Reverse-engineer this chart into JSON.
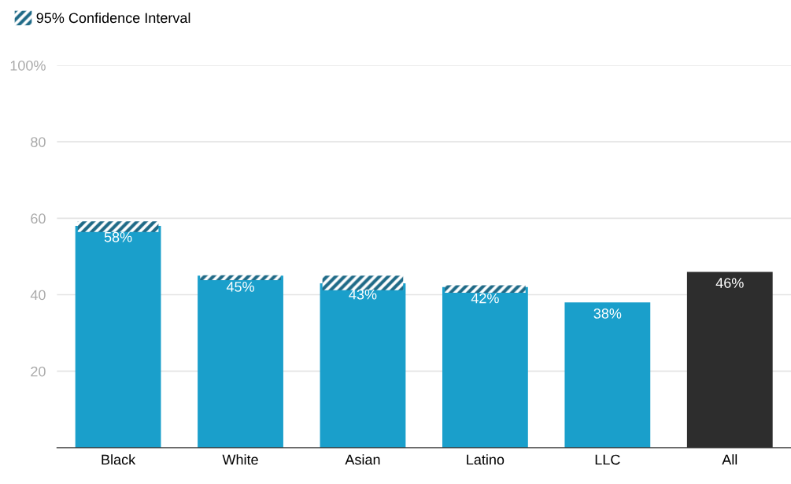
{
  "chart_data": {
    "type": "bar",
    "categories": [
      "Black",
      "White",
      "Asian",
      "Latino",
      "LLC",
      "All"
    ],
    "series": [
      {
        "values": [
          58,
          45,
          43,
          42,
          38,
          46
        ],
        "value_labels": [
          "58%",
          "45%",
          "43%",
          "42%",
          "38%",
          "46%"
        ],
        "colors": [
          "#1a9fcb",
          "#1a9fcb",
          "#1a9fcb",
          "#1a9fcb",
          "#1a9fcb",
          "#2d2d2d"
        ]
      },
      {
        "name": "95% Confidence Interval",
        "color": "#1f6a87",
        "base": [
          56.4,
          43.8,
          41.2,
          40.5,
          null,
          null
        ],
        "values": [
          2.8,
          1.3,
          3.8,
          2.0,
          null,
          null
        ]
      }
    ],
    "legend": "top left",
    "ylim": [
      0,
      100
    ],
    "yticks": [
      20,
      40,
      60,
      80,
      {
        "value": 100,
        "label": "100%"
      }
    ],
    "grid": "y"
  }
}
